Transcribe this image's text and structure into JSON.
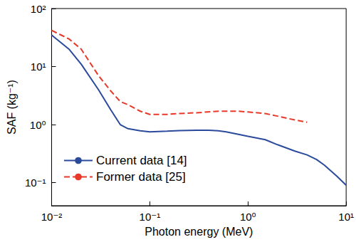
{
  "chart_data": {
    "type": "line",
    "xlabel": "Photon energy (MeV)",
    "ylabel": "SAF (kg⁻¹)",
    "log": true,
    "grid": false,
    "legend": "lower left",
    "xlim": [
      0.01,
      10
    ],
    "ylim": [
      0.04,
      100
    ],
    "xticks": [
      {
        "value": 0.01,
        "label": "10⁻²"
      },
      {
        "value": 0.1,
        "label": "10⁻¹"
      },
      {
        "value": 1,
        "label": "10⁰"
      },
      {
        "value": 10,
        "label": "10¹"
      }
    ],
    "yticks": [
      {
        "value": 0.1,
        "label": "10⁻¹"
      },
      {
        "value": 1,
        "label": "10⁰"
      },
      {
        "value": 10,
        "label": "10¹"
      },
      {
        "value": 100,
        "label": "10²"
      }
    ],
    "series": [
      {
        "name": "Current data [14]",
        "color": "#2a4b9b",
        "line_style": "solid",
        "x": [
          0.01,
          0.015,
          0.02,
          0.03,
          0.04,
          0.05,
          0.06,
          0.08,
          0.1,
          0.15,
          0.2,
          0.3,
          0.4,
          0.5,
          0.6,
          0.8,
          1,
          1.5,
          2,
          3,
          4,
          5,
          6,
          8,
          10
        ],
        "values": [
          35,
          20,
          11,
          4,
          1.8,
          1.0,
          0.85,
          0.78,
          0.75,
          0.77,
          0.79,
          0.8,
          0.8,
          0.78,
          0.75,
          0.68,
          0.63,
          0.55,
          0.45,
          0.35,
          0.3,
          0.25,
          0.2,
          0.13,
          0.09
        ]
      },
      {
        "name": "Former data [25]",
        "color": "#e8382a",
        "line_style": "dashed",
        "x": [
          0.01,
          0.015,
          0.02,
          0.03,
          0.04,
          0.05,
          0.06,
          0.08,
          0.1,
          0.15,
          0.2,
          0.3,
          0.5,
          0.8,
          1,
          1.5,
          2,
          3,
          4
        ],
        "values": [
          42,
          30,
          20,
          7,
          3.8,
          2.5,
          2.2,
          1.7,
          1.5,
          1.5,
          1.55,
          1.6,
          1.7,
          1.7,
          1.65,
          1.55,
          1.4,
          1.2,
          1.1
        ]
      }
    ]
  }
}
